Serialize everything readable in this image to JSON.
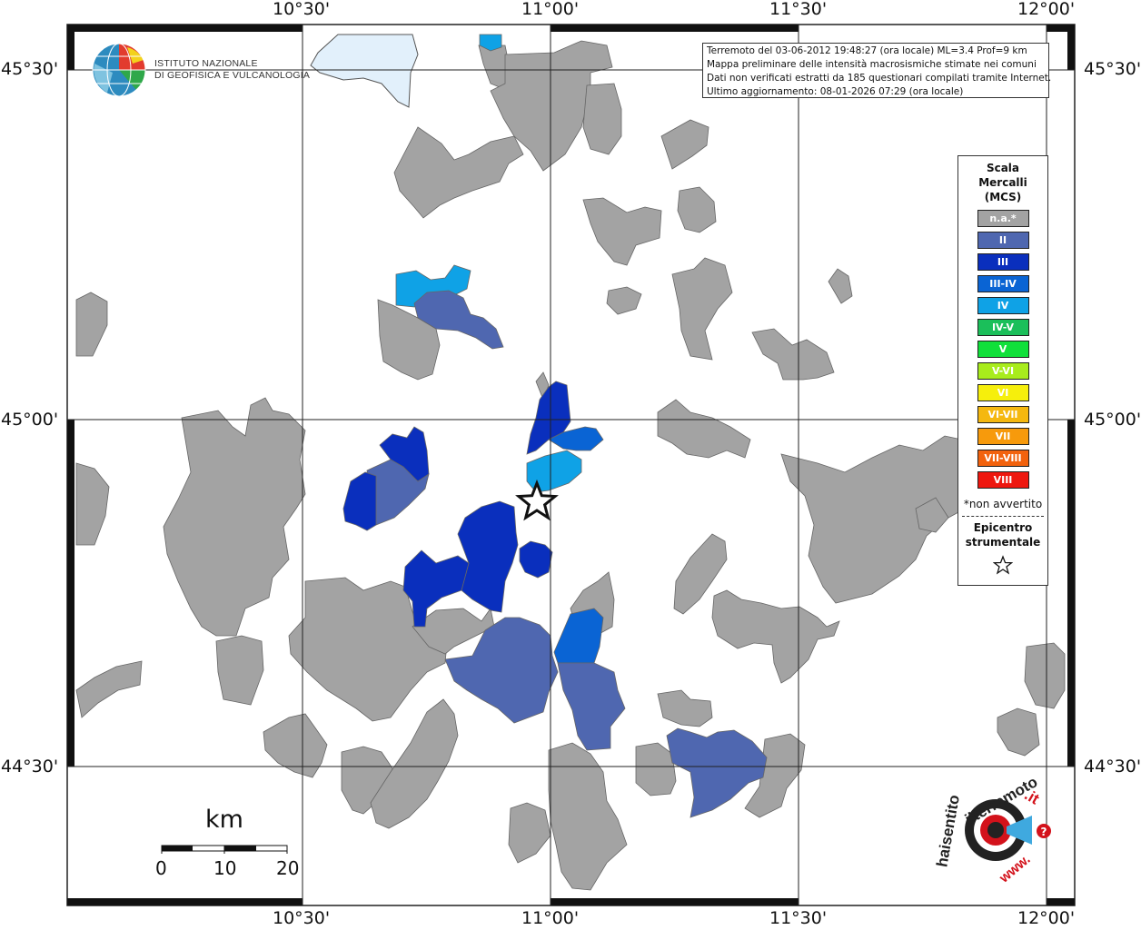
{
  "map": {
    "lon_labels": [
      "10°30'",
      "11°00'",
      "11°30'",
      "12°00'"
    ],
    "lat_labels": [
      "45°30'",
      "45°00'",
      "44°30'"
    ]
  },
  "header": {
    "lines": [
      "Terremoto del 03-06-2012 19:48:27 (ora locale) ML=3.4 Prof=9 km",
      "Mappa preliminare delle intensità macrosismiche stimate nei comuni",
      "Dati non verificati estratti da 185 questionari compilati tramite Internet.",
      "Ultimo aggiornamento: 08-01-2026 07:29 (ora locale)"
    ]
  },
  "ingv": {
    "line1": "ISTITUTO NAZIONALE",
    "line2": "DI GEOFISICA E VULCANOLOGIA"
  },
  "legend": {
    "title_line1": "Scala",
    "title_line2": "Mercalli",
    "title_line3": "(MCS)",
    "items": [
      {
        "label": "n.a.*",
        "color": "#a3a3a3"
      },
      {
        "label": "II",
        "color": "#4f67b0"
      },
      {
        "label": "III",
        "color": "#0a2fbd"
      },
      {
        "label": "III-IV",
        "color": "#0a64d4"
      },
      {
        "label": "IV",
        "color": "#0fa2e6"
      },
      {
        "label": "IV-V",
        "color": "#1bbf5a"
      },
      {
        "label": "V",
        "color": "#10e03a"
      },
      {
        "label": "V-VI",
        "color": "#a8ec1c"
      },
      {
        "label": "VI",
        "color": "#f6ef0c"
      },
      {
        "label": "VI-VII",
        "color": "#f5b80f"
      },
      {
        "label": "VII",
        "color": "#f79a0c"
      },
      {
        "label": "VII-VIII",
        "color": "#f2620d"
      },
      {
        "label": "VIII",
        "color": "#ee170f"
      }
    ],
    "note": "*non avvertito",
    "epicentre_line1": "Epicentro",
    "epicentre_line2": "strumentale"
  },
  "scale_bar": {
    "unit": "km",
    "labels": [
      "0",
      "10",
      "20"
    ]
  },
  "hai_sentito": {
    "text1": "haisentito",
    "text2": "ilterremoto",
    "text3": ".it",
    "text4": "www."
  },
  "colors": {
    "na": "#a3a3a3",
    "ii": "#4f67b0",
    "iii": "#0a2fbd",
    "iii_iv": "#0a64d4",
    "iv": "#0fa2e6",
    "lake": "#e2f0fb"
  }
}
